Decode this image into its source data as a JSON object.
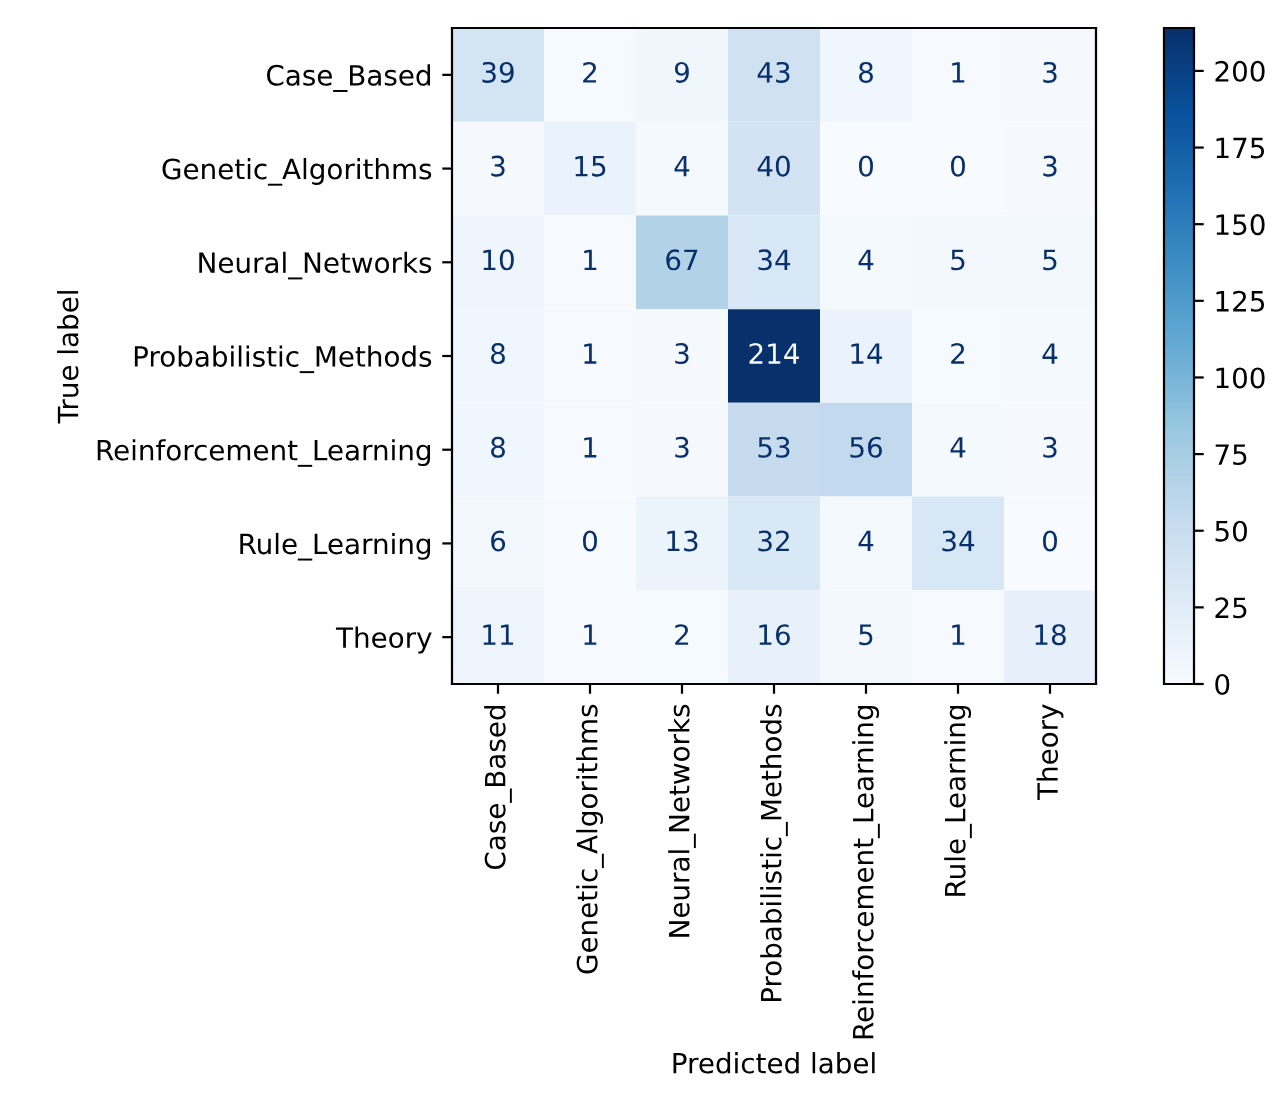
{
  "chart_data": {
    "type": "heatmap",
    "xlabel": "Predicted label",
    "ylabel": "True label",
    "categories": [
      "Case_Based",
      "Genetic_Algorithms",
      "Neural_Networks",
      "Probabilistic_Methods",
      "Reinforcement_Learning",
      "Rule_Learning",
      "Theory"
    ],
    "y_categories": [
      "Case_Based",
      "Genetic_Algorithms",
      "Neural_Networks",
      "Probabilistic_Methods",
      "Reinforcement_Learning",
      "Rule_Learning",
      "Theory"
    ],
    "cells": [
      [
        39,
        2,
        9,
        43,
        8,
        1,
        3
      ],
      [
        3,
        15,
        4,
        40,
        0,
        0,
        3
      ],
      [
        10,
        1,
        67,
        34,
        4,
        5,
        5
      ],
      [
        8,
        1,
        3,
        214,
        14,
        2,
        4
      ],
      [
        8,
        1,
        3,
        53,
        56,
        4,
        3
      ],
      [
        6,
        0,
        13,
        32,
        4,
        34,
        0
      ],
      [
        11,
        1,
        2,
        16,
        5,
        1,
        18
      ]
    ],
    "clim": [
      0,
      214
    ],
    "cticks": [
      0,
      25,
      50,
      75,
      100,
      125,
      150,
      175,
      200
    ],
    "data_labels": true
  }
}
